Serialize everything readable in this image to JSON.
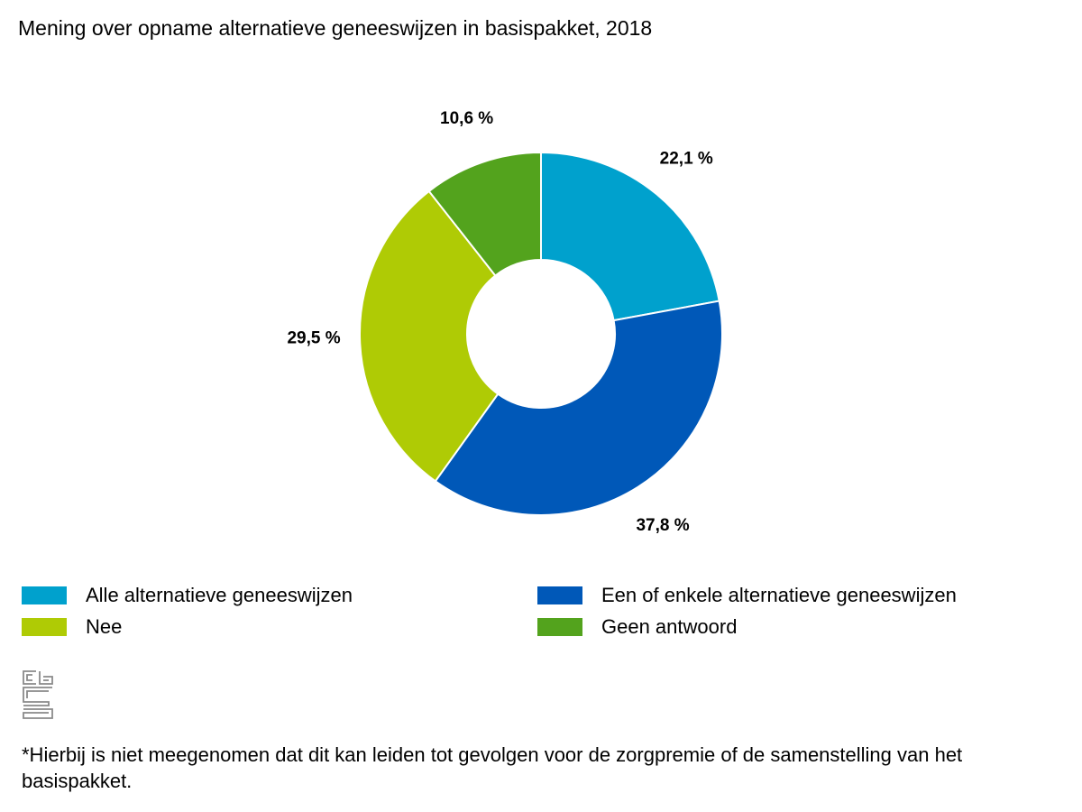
{
  "chart_data": {
    "type": "pie",
    "title": "Mening over opname alternatieve geneeswijzen in basispakket, 2018",
    "slices": [
      {
        "name": "Alle alternatieve geneeswijzen",
        "value": 22.1,
        "label": "22,1 %",
        "color": "#00a1cd"
      },
      {
        "name": "Een of enkele alternatieve geneeswijzen",
        "value": 37.8,
        "label": "37,8 %",
        "color": "#0058b8"
      },
      {
        "name": "Nee",
        "value": 29.5,
        "label": "29,5 %",
        "color": "#afcb05"
      },
      {
        "name": "Geen antwoord",
        "value": 10.6,
        "label": "10,6 %",
        "color": "#53a31d"
      }
    ],
    "donut": true,
    "legend_position": "bottom"
  },
  "footnote": "*Hierbij is niet meegenomen dat dit kan leiden tot gevolgen voor de zorgpremie of de samenstelling van het basispakket."
}
